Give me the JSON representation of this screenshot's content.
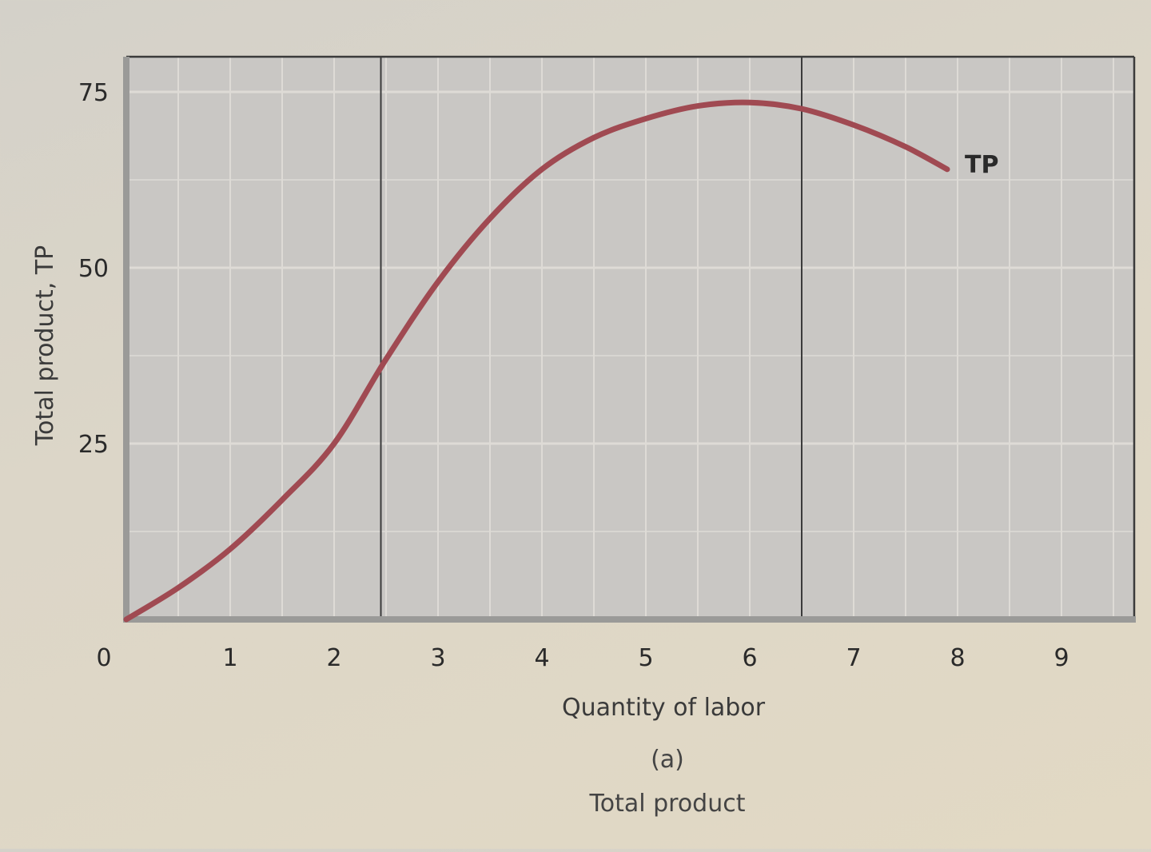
{
  "figure": {
    "panel_letter": "(a)",
    "caption": "Total product"
  },
  "colors": {
    "plot_bg": "#c9c7c4",
    "grid": "#dedbd6",
    "frame": "#3b3b3b",
    "axis": "#9a9a98",
    "curve": "#a04a52"
  },
  "chart_data": {
    "type": "line",
    "title": "Total product",
    "panel": "(a)",
    "xlabel": "Quantity of labor",
    "ylabel": "Total product, TP",
    "xlim": [
      0,
      9.7
    ],
    "ylim": [
      0,
      80
    ],
    "x_ticks": [
      0,
      1,
      2,
      3,
      4,
      5,
      6,
      7,
      8,
      9
    ],
    "x_tick_labels": [
      "0",
      "1",
      "2",
      "3",
      "4",
      "5",
      "6",
      "7",
      "8",
      "9"
    ],
    "y_ticks": [
      25,
      50,
      75
    ],
    "y_tick_labels": [
      "25",
      "50",
      "75"
    ],
    "grid": true,
    "vertical_markers": [
      2.45,
      6.5
    ],
    "series": [
      {
        "name": "TP",
        "label_position": "end",
        "x": [
          0,
          0.5,
          1,
          1.5,
          2,
          2.5,
          3,
          3.5,
          4,
          4.5,
          5,
          5.5,
          6,
          6.5,
          7,
          7.5,
          7.9
        ],
        "y": [
          0,
          4.5,
          10,
          17,
          25,
          37,
          48,
          57,
          64,
          68.5,
          71.2,
          73,
          73.5,
          72.6,
          70.3,
          67.2,
          64
        ]
      }
    ],
    "legend": "none (inline label 'TP' at curve end)"
  }
}
